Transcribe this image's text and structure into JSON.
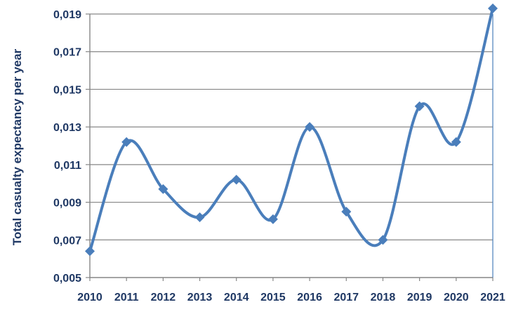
{
  "chart_data": {
    "type": "line",
    "title": "",
    "xlabel": "",
    "ylabel": "Total casualty expectancy per year",
    "smooth": true,
    "grid": "horizontal",
    "legend": "none",
    "x": [
      "2010",
      "2011",
      "2012",
      "2013",
      "2014",
      "2015",
      "2016",
      "2017",
      "2018",
      "2019",
      "2020",
      "2021"
    ],
    "y_ticks": [
      0.005,
      0.007,
      0.009,
      0.011,
      0.013,
      0.015,
      0.017,
      0.019
    ],
    "y_tick_labels": [
      "0,005",
      "0,007",
      "0,009",
      "0,011",
      "0,013",
      "0,015",
      "0,017",
      "0,019"
    ],
    "ylim": [
      0.005,
      0.019
    ],
    "series": [
      {
        "values": [
          0.0064,
          0.0122,
          0.0097,
          0.0082,
          0.0102,
          0.0081,
          0.013,
          0.0085,
          0.007,
          0.0141,
          0.0122,
          0.0193
        ]
      }
    ],
    "colors": {
      "line": "#4a7ebb",
      "marker": "#4a7ebb",
      "grid": "#868686",
      "axis": "#868686",
      "text": "#1f3864"
    }
  }
}
